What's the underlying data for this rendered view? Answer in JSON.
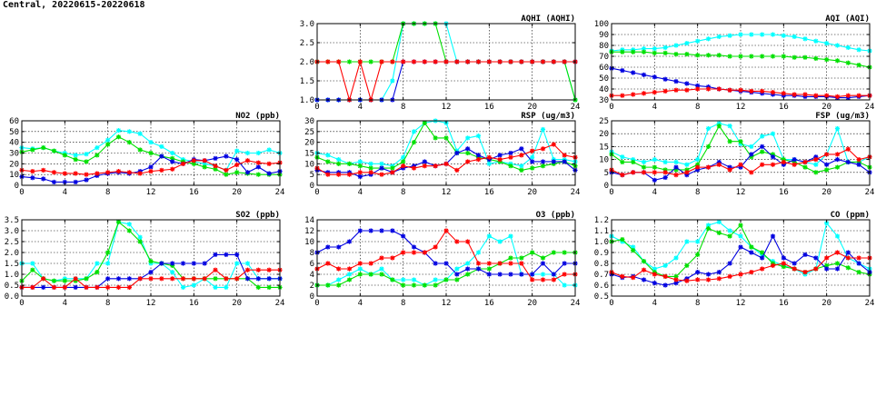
{
  "page": {
    "title": "Central, 20220615-20220618"
  },
  "colors": {
    "cyan": "#00ffff",
    "green": "#00e000",
    "red": "#ff0000",
    "blue": "#0000e0"
  },
  "chart_data": [
    {
      "id": "aqhi",
      "type": "line",
      "title": "AQHI (AQHI)",
      "x_ticks": [
        0,
        4,
        8,
        12,
        16,
        20,
        24
      ],
      "y_ticks": [
        "1.0",
        "1.5",
        "2.0",
        "2.5",
        "3.0"
      ],
      "xlim": [
        0,
        24
      ],
      "ylim": [
        1,
        3
      ],
      "series": [
        {
          "color": "cyan",
          "values": [
            1,
            1,
            1,
            1,
            1,
            1,
            1,
            1.5,
            3,
            3,
            3,
            3,
            3,
            2,
            2,
            2,
            2,
            2,
            2,
            2,
            2,
            2,
            2,
            2,
            1
          ]
        },
        {
          "color": "green",
          "values": [
            2,
            2,
            2,
            2,
            2,
            2,
            2,
            2,
            3,
            3,
            3,
            3,
            2,
            2,
            2,
            2,
            2,
            2,
            2,
            2,
            2,
            2,
            2,
            2,
            1
          ]
        },
        {
          "color": "blue",
          "values": [
            1,
            1,
            1,
            1,
            1,
            1,
            1,
            1,
            2,
            2,
            2,
            2,
            2,
            2,
            2,
            2,
            2,
            2,
            2,
            2,
            2,
            2,
            2,
            2,
            2
          ]
        },
        {
          "color": "red",
          "values": [
            2,
            2,
            2,
            1,
            2,
            1,
            2,
            2,
            2,
            2,
            2,
            2,
            2,
            2,
            2,
            2,
            2,
            2,
            2,
            2,
            2,
            2,
            2,
            2,
            2
          ]
        }
      ]
    },
    {
      "id": "aqi",
      "type": "line",
      "title": "AQI (AQI)",
      "x_ticks": [
        0,
        4,
        8,
        12,
        16,
        20,
        24
      ],
      "y_ticks": [
        "30",
        "40",
        "50",
        "60",
        "70",
        "80",
        "90",
        "100"
      ],
      "xlim": [
        0,
        24
      ],
      "ylim": [
        30,
        100
      ],
      "series": [
        {
          "color": "cyan",
          "values": [
            75,
            76,
            76,
            77,
            77,
            78,
            80,
            82,
            84,
            86,
            88,
            89,
            90,
            90,
            90,
            90,
            89,
            88,
            86,
            84,
            82,
            80,
            78,
            76,
            75
          ]
        },
        {
          "color": "green",
          "values": [
            74,
            74,
            74,
            74,
            73,
            73,
            72,
            72,
            71,
            71,
            71,
            70,
            70,
            70,
            70,
            70,
            70,
            69,
            69,
            68,
            67,
            66,
            64,
            62,
            60
          ]
        },
        {
          "color": "blue",
          "values": [
            59,
            57,
            55,
            53,
            51,
            49,
            47,
            45,
            43,
            42,
            40,
            39,
            38,
            37,
            36,
            35,
            34,
            34,
            33,
            33,
            33,
            32,
            32,
            33,
            34
          ]
        },
        {
          "color": "red",
          "values": [
            34,
            34,
            35,
            36,
            37,
            38,
            39,
            39,
            40,
            40,
            40,
            39,
            39,
            38,
            38,
            37,
            36,
            35,
            35,
            34,
            34,
            33,
            34,
            34,
            34
          ]
        }
      ]
    },
    {
      "id": "no2",
      "type": "line",
      "title": "NO2 (ppb)",
      "x_ticks": [
        0,
        4,
        8,
        12,
        16,
        20,
        24
      ],
      "y_ticks": [
        "0",
        "10",
        "20",
        "30",
        "40",
        "50",
        "60"
      ],
      "xlim": [
        0,
        24
      ],
      "ylim": [
        0,
        60
      ],
      "series": [
        {
          "color": "cyan",
          "values": [
            35,
            34,
            35,
            32,
            30,
            28,
            29,
            35,
            42,
            51,
            50,
            48,
            40,
            36,
            30,
            24,
            22,
            20,
            18,
            14,
            32,
            30,
            30,
            33,
            30
          ]
        },
        {
          "color": "green",
          "values": [
            31,
            33,
            35,
            32,
            28,
            24,
            22,
            28,
            38,
            45,
            40,
            33,
            30,
            27,
            25,
            22,
            20,
            17,
            15,
            10,
            12,
            11,
            10,
            10,
            10
          ]
        },
        {
          "color": "blue",
          "values": [
            8,
            7,
            6,
            3,
            3,
            3,
            5,
            9,
            11,
            12,
            11,
            13,
            17,
            27,
            22,
            20,
            24,
            23,
            25,
            27,
            24,
            12,
            17,
            11,
            13
          ]
        },
        {
          "color": "red",
          "values": [
            14,
            13,
            14,
            12,
            11,
            11,
            10,
            11,
            12,
            13,
            12,
            11,
            13,
            14,
            15,
            20,
            23,
            23,
            18,
            14,
            19,
            23,
            21,
            20,
            21
          ]
        }
      ]
    },
    {
      "id": "rsp",
      "type": "line",
      "title": "RSP (ug/m3)",
      "x_ticks": [
        0,
        4,
        8,
        12,
        16,
        20,
        24
      ],
      "y_ticks": [
        "0",
        "5",
        "10",
        "15",
        "20",
        "25",
        "30"
      ],
      "xlim": [
        0,
        24
      ],
      "ylim": [
        0,
        30
      ],
      "series": [
        {
          "color": "cyan",
          "values": [
            15,
            14,
            12,
            10,
            11,
            10,
            10,
            9,
            13,
            25,
            29,
            30,
            29,
            16,
            22,
            23,
            10,
            11,
            10,
            9,
            13,
            26,
            12,
            12,
            11
          ]
        },
        {
          "color": "green",
          "values": [
            13,
            11,
            10,
            10,
            9,
            8,
            8,
            8,
            11,
            20,
            29,
            22,
            22,
            15,
            15,
            13,
            12,
            11,
            9,
            7,
            8,
            9,
            10,
            11,
            9
          ]
        },
        {
          "color": "blue",
          "values": [
            7,
            6,
            6,
            6,
            4,
            5,
            8,
            6,
            8,
            9,
            11,
            9,
            10,
            15,
            17,
            14,
            12,
            14,
            15,
            17,
            11,
            11,
            11,
            11,
            7
          ]
        },
        {
          "color": "red",
          "values": [
            8,
            5,
            5,
            5,
            6,
            6,
            5,
            6,
            9,
            8,
            9,
            9,
            10,
            7,
            11,
            12,
            13,
            12,
            13,
            14,
            16,
            17,
            19,
            14,
            13
          ]
        }
      ]
    },
    {
      "id": "fsp",
      "type": "line",
      "title": "FSP (ug/m3)",
      "x_ticks": [
        0,
        4,
        8,
        12,
        16,
        20,
        24
      ],
      "y_ticks": [
        "0",
        "5",
        "10",
        "15",
        "20",
        "25"
      ],
      "xlim": [
        0,
        24
      ],
      "ylim": [
        0,
        25
      ],
      "series": [
        {
          "color": "cyan",
          "values": [
            13,
            11,
            10,
            9,
            10,
            9,
            9,
            8,
            10,
            22,
            24,
            23,
            16,
            15,
            19,
            20,
            10,
            10,
            9,
            8,
            12,
            22,
            9,
            9,
            11
          ]
        },
        {
          "color": "green",
          "values": [
            12,
            9,
            9,
            7,
            7,
            6,
            6,
            6,
            8,
            15,
            23,
            17,
            17,
            11,
            13,
            12,
            10,
            9,
            7,
            5,
            6,
            7,
            9,
            9,
            7
          ]
        },
        {
          "color": "blue",
          "values": [
            5,
            4,
            5,
            5,
            2,
            3,
            7,
            4,
            6,
            7,
            9,
            7,
            7,
            12,
            15,
            11,
            8,
            10,
            9,
            11,
            8,
            10,
            9,
            8,
            5
          ]
        },
        {
          "color": "red",
          "values": [
            6,
            4,
            5,
            5,
            5,
            5,
            4,
            5,
            7,
            7,
            8,
            6,
            8,
            5,
            8,
            8,
            9,
            8,
            9,
            10,
            12,
            12,
            14,
            10,
            11
          ]
        }
      ]
    },
    {
      "id": "so2",
      "type": "line",
      "title": "SO2 (ppb)",
      "x_ticks": [
        0,
        4,
        8,
        12,
        16,
        20,
        24
      ],
      "y_ticks": [
        "0.0",
        "0.5",
        "1.0",
        "1.5",
        "2.0",
        "2.5",
        "3.0",
        "3.5"
      ],
      "xlim": [
        0,
        24
      ],
      "ylim": [
        0,
        3.5
      ],
      "series": [
        {
          "color": "cyan",
          "values": [
            1.5,
            1.5,
            0.8,
            0.7,
            0.8,
            0.8,
            0.8,
            1.5,
            1.5,
            3.4,
            3.3,
            2.7,
            1.5,
            1.5,
            1.1,
            0.4,
            0.5,
            0.8,
            0.4,
            0.4,
            1.5,
            1.5,
            0.8,
            0.8,
            0.8
          ]
        },
        {
          "color": "green",
          "values": [
            0.7,
            1.2,
            0.8,
            0.7,
            0.7,
            0.7,
            0.8,
            1.1,
            2.0,
            3.4,
            3.0,
            2.5,
            1.6,
            1.5,
            1.4,
            0.8,
            0.8,
            0.8,
            0.8,
            0.8,
            0.8,
            0.8,
            0.4,
            0.4,
            0.4
          ]
        },
        {
          "color": "blue",
          "values": [
            0.4,
            0.4,
            0.4,
            0.4,
            0.4,
            0.4,
            0.4,
            0.4,
            0.8,
            0.8,
            0.8,
            0.8,
            1.1,
            1.5,
            1.5,
            1.5,
            1.5,
            1.5,
            1.9,
            1.9,
            1.9,
            0.8,
            0.8,
            0.8,
            0.8
          ]
        },
        {
          "color": "red",
          "values": [
            0.4,
            0.4,
            0.8,
            0.4,
            0.4,
            0.8,
            0.4,
            0.4,
            0.4,
            0.4,
            0.4,
            0.8,
            0.8,
            0.8,
            0.8,
            0.8,
            0.8,
            0.8,
            1.2,
            0.8,
            0.8,
            1.2,
            1.2,
            1.2,
            1.2
          ]
        }
      ]
    },
    {
      "id": "o3",
      "type": "line",
      "title": "O3 (ppb)",
      "x_ticks": [
        0,
        4,
        8,
        12,
        16,
        20,
        24
      ],
      "y_ticks": [
        "0",
        "2",
        "4",
        "6",
        "8",
        "10",
        "12",
        "14"
      ],
      "xlim": [
        0,
        24
      ],
      "ylim": [
        0,
        14
      ],
      "series": [
        {
          "color": "cyan",
          "values": [
            2,
            2,
            3,
            4,
            5,
            4,
            5,
            3,
            3,
            3,
            2,
            3,
            3,
            5,
            6,
            8,
            11,
            10,
            11,
            4,
            4,
            4,
            4,
            2,
            2
          ]
        },
        {
          "color": "green",
          "values": [
            2,
            2,
            2,
            3,
            4,
            4,
            4,
            3,
            2,
            2,
            2,
            2,
            3,
            3,
            4,
            5,
            5,
            6,
            7,
            7,
            8,
            7,
            8,
            8,
            8
          ]
        },
        {
          "color": "blue",
          "values": [
            8,
            9,
            9,
            10,
            12,
            12,
            12,
            12,
            11,
            9,
            8,
            6,
            6,
            4,
            5,
            5,
            4,
            4,
            4,
            4,
            4,
            6,
            4,
            6,
            6
          ]
        },
        {
          "color": "red",
          "values": [
            5,
            6,
            5,
            5,
            6,
            6,
            7,
            7,
            8,
            8,
            8,
            9,
            12,
            10,
            10,
            6,
            6,
            6,
            6,
            6,
            3,
            3,
            3,
            4,
            4
          ]
        }
      ]
    },
    {
      "id": "co",
      "type": "line",
      "title": "CO (ppm)",
      "x_ticks": [
        0,
        4,
        8,
        12,
        16,
        20,
        24
      ],
      "y_ticks": [
        "0.5",
        "0.6",
        "0.7",
        "0.8",
        "0.9",
        "1.0",
        "1.1",
        "1.2"
      ],
      "xlim": [
        0,
        24
      ],
      "ylim": [
        0.5,
        1.2
      ],
      "series": [
        {
          "color": "cyan",
          "values": [
            1.05,
            1.0,
            0.95,
            0.82,
            0.75,
            0.78,
            0.85,
            1.0,
            1.0,
            1.15,
            1.18,
            1.1,
            1.05,
            0.95,
            0.88,
            0.82,
            0.78,
            0.75,
            0.7,
            0.75,
            1.17,
            1.05,
            0.85,
            0.8,
            0.75
          ]
        },
        {
          "color": "green",
          "values": [
            1.0,
            1.02,
            0.92,
            0.82,
            0.72,
            0.68,
            0.68,
            0.78,
            0.88,
            1.12,
            1.08,
            1.05,
            1.15,
            0.95,
            0.9,
            0.8,
            0.77,
            0.75,
            0.72,
            0.75,
            0.78,
            0.8,
            0.76,
            0.72,
            0.7
          ]
        },
        {
          "color": "blue",
          "values": [
            0.7,
            0.67,
            0.68,
            0.65,
            0.62,
            0.6,
            0.62,
            0.66,
            0.72,
            0.7,
            0.72,
            0.8,
            0.95,
            0.9,
            0.85,
            1.05,
            0.85,
            0.8,
            0.88,
            0.85,
            0.75,
            0.75,
            0.9,
            0.8,
            0.72
          ]
        },
        {
          "color": "red",
          "values": [
            0.72,
            0.68,
            0.67,
            0.74,
            0.7,
            0.68,
            0.65,
            0.64,
            0.65,
            0.65,
            0.66,
            0.68,
            0.7,
            0.72,
            0.75,
            0.78,
            0.8,
            0.75,
            0.72,
            0.75,
            0.85,
            0.9,
            0.85,
            0.85,
            0.85
          ]
        }
      ]
    }
  ]
}
